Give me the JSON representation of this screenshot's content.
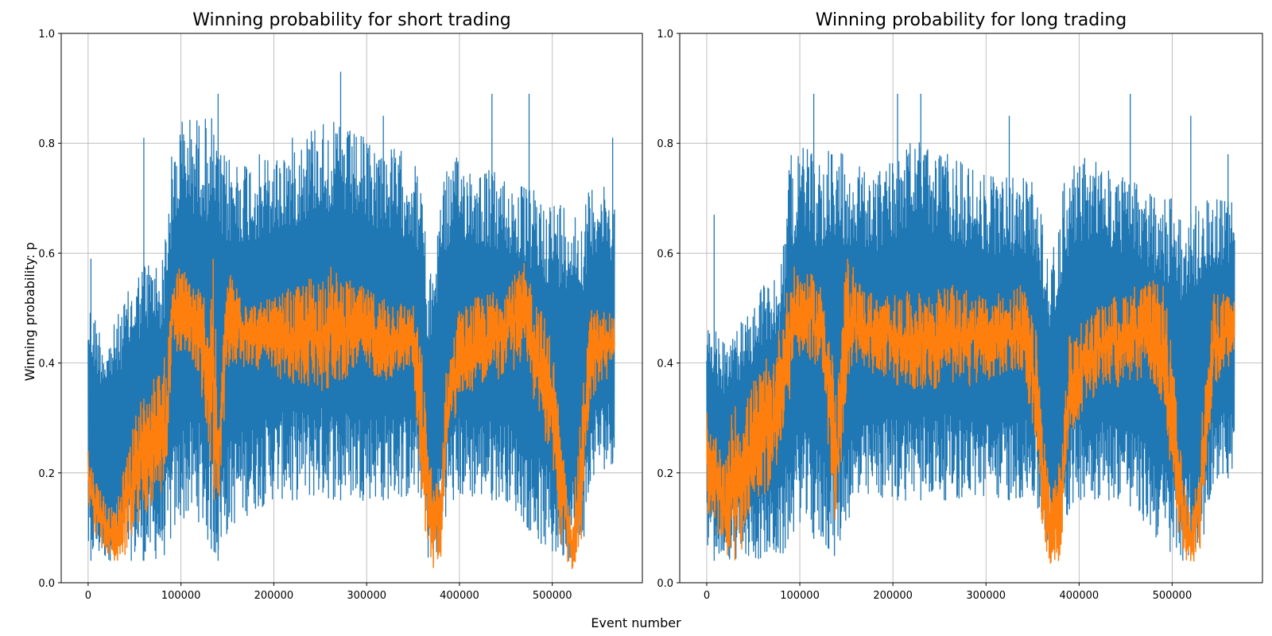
{
  "figure": {
    "xlabel": "Event number",
    "ylabel": "Winning probability: p"
  },
  "colors": {
    "series_1": "#1f77b4",
    "series_2": "#ff7f0e",
    "grid": "#b0b0b0"
  },
  "chart_data": [
    {
      "type": "line",
      "title": "Winning probability for short trading",
      "xlim": [
        -29000,
        597000
      ],
      "ylim": [
        0.0,
        1.0
      ],
      "x_ticks": [
        0,
        100000,
        200000,
        300000,
        400000,
        500000
      ],
      "y_ticks": [
        0.0,
        0.2,
        0.4,
        0.6,
        0.8,
        1.0
      ],
      "grid": true,
      "series": [
        {
          "color": "#1f77b4",
          "x": [
            0,
            20000,
            40000,
            60000,
            80000,
            90000,
            100000,
            120000,
            135000,
            140000,
            145000,
            160000,
            200000,
            250000,
            300000,
            350000,
            362000,
            365000,
            375000,
            380000,
            400000,
            450000,
            500000,
            520000,
            530000,
            545000,
            567000
          ],
          "low": [
            0.04,
            0.04,
            0.04,
            0.04,
            0.04,
            0.07,
            0.11,
            0.11,
            0.04,
            0.04,
            0.07,
            0.11,
            0.15,
            0.15,
            0.15,
            0.15,
            0.15,
            0.04,
            0.04,
            0.11,
            0.15,
            0.15,
            0.04,
            0.04,
            0.04,
            0.19,
            0.22
          ],
          "high": [
            0.52,
            0.44,
            0.52,
            0.59,
            0.59,
            0.78,
            0.85,
            0.85,
            0.85,
            0.78,
            0.78,
            0.78,
            0.78,
            0.85,
            0.81,
            0.78,
            0.7,
            0.52,
            0.63,
            0.74,
            0.78,
            0.74,
            0.7,
            0.7,
            0.67,
            0.74,
            0.7
          ],
          "peaks": [
            [
              3000,
              0.59
            ],
            [
              60000,
              0.81
            ],
            [
              140000,
              0.89
            ],
            [
              220000,
              0.81
            ],
            [
              272000,
              0.93
            ],
            [
              318000,
              0.85
            ],
            [
              435000,
              0.89
            ],
            [
              475000,
              0.89
            ],
            [
              565000,
              0.81
            ]
          ]
        },
        {
          "color": "#ff7f0e",
          "x": [
            0,
            10000,
            20000,
            30000,
            40000,
            55000,
            70000,
            85000,
            90000,
            100000,
            110000,
            120000,
            130000,
            135000,
            140000,
            150000,
            180000,
            220000,
            260000,
            290000,
            320000,
            350000,
            360000,
            365000,
            372000,
            380000,
            385000,
            400000,
            440000,
            470000,
            500000,
            510000,
            520000,
            530000,
            540000,
            567000
          ],
          "low": [
            0.14,
            0.06,
            0.04,
            0.02,
            0.03,
            0.08,
            0.12,
            0.15,
            0.38,
            0.4,
            0.38,
            0.35,
            0.18,
            0.1,
            0.1,
            0.36,
            0.38,
            0.33,
            0.33,
            0.37,
            0.35,
            0.38,
            0.1,
            0.02,
            0.01,
            0.02,
            0.2,
            0.32,
            0.35,
            0.38,
            0.18,
            0.03,
            0.01,
            0.01,
            0.3,
            0.38
          ],
          "high": [
            0.24,
            0.2,
            0.16,
            0.14,
            0.25,
            0.36,
            0.4,
            0.44,
            0.58,
            0.6,
            0.58,
            0.56,
            0.55,
            0.69,
            0.3,
            0.6,
            0.52,
            0.56,
            0.6,
            0.56,
            0.54,
            0.52,
            0.46,
            0.32,
            0.2,
            0.22,
            0.4,
            0.52,
            0.56,
            0.6,
            0.48,
            0.28,
            0.12,
            0.32,
            0.52,
            0.5
          ]
        }
      ]
    },
    {
      "type": "line",
      "title": "Winning probability for long trading",
      "xlim": [
        -29000,
        597000
      ],
      "ylim": [
        0.0,
        1.0
      ],
      "x_ticks": [
        0,
        100000,
        200000,
        300000,
        400000,
        500000
      ],
      "y_ticks": [
        0.0,
        0.2,
        0.4,
        0.6,
        0.8,
        1.0
      ],
      "grid": true,
      "series": [
        {
          "color": "#1f77b4",
          "x": [
            0,
            20000,
            40000,
            60000,
            80000,
            90000,
            100000,
            120000,
            140000,
            150000,
            180000,
            220000,
            260000,
            300000,
            350000,
            370000,
            375000,
            385000,
            400000,
            450000,
            500000,
            510000,
            530000,
            545000,
            567000
          ],
          "low": [
            0.04,
            0.04,
            0.04,
            0.04,
            0.04,
            0.07,
            0.11,
            0.07,
            0.04,
            0.11,
            0.15,
            0.15,
            0.15,
            0.15,
            0.15,
            0.04,
            0.04,
            0.11,
            0.15,
            0.15,
            0.04,
            0.04,
            0.04,
            0.19,
            0.19
          ],
          "high": [
            0.48,
            0.44,
            0.48,
            0.55,
            0.59,
            0.78,
            0.81,
            0.78,
            0.81,
            0.78,
            0.74,
            0.81,
            0.78,
            0.74,
            0.74,
            0.59,
            0.63,
            0.74,
            0.78,
            0.74,
            0.7,
            0.67,
            0.7,
            0.7,
            0.7
          ],
          "peaks": [
            [
              8000,
              0.67
            ],
            [
              115000,
              0.89
            ],
            [
              205000,
              0.89
            ],
            [
              230000,
              0.89
            ],
            [
              325000,
              0.85
            ],
            [
              455000,
              0.89
            ],
            [
              520000,
              0.85
            ],
            [
              560000,
              0.78
            ]
          ]
        },
        {
          "color": "#ff7f0e",
          "x": [
            0,
            10000,
            20000,
            30000,
            40000,
            50000,
            70000,
            85000,
            95000,
            110000,
            125000,
            135000,
            140000,
            150000,
            160000,
            180000,
            220000,
            260000,
            300000,
            340000,
            355000,
            362000,
            370000,
            380000,
            390000,
            420000,
            460000,
            490000,
            500000,
            510000,
            520000,
            530000,
            545000,
            567000
          ],
          "low": [
            0.1,
            0.06,
            0.03,
            0.01,
            0.04,
            0.12,
            0.14,
            0.25,
            0.4,
            0.38,
            0.36,
            0.1,
            0.05,
            0.3,
            0.38,
            0.36,
            0.33,
            0.33,
            0.35,
            0.36,
            0.2,
            0.03,
            0.01,
            0.02,
            0.25,
            0.33,
            0.35,
            0.3,
            0.12,
            0.02,
            0.02,
            0.03,
            0.34,
            0.38
          ],
          "high": [
            0.31,
            0.28,
            0.24,
            0.38,
            0.35,
            0.4,
            0.44,
            0.56,
            0.6,
            0.58,
            0.56,
            0.48,
            0.36,
            0.64,
            0.58,
            0.54,
            0.55,
            0.56,
            0.54,
            0.56,
            0.48,
            0.3,
            0.2,
            0.26,
            0.48,
            0.52,
            0.56,
            0.58,
            0.45,
            0.24,
            0.12,
            0.3,
            0.55,
            0.54
          ]
        }
      ]
    }
  ]
}
